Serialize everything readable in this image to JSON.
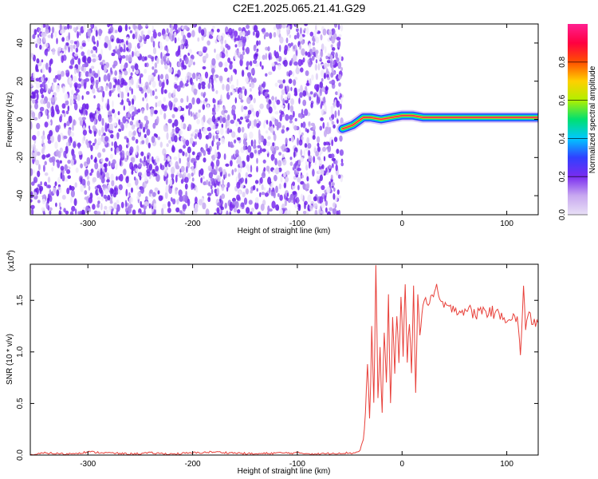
{
  "title": "C2E1.2025.065.21.41.G29",
  "colors": {
    "snr_line": "#e8403a",
    "scatter": "#7a2cf0",
    "axis": "#000000",
    "cbar": [
      "#e8e0f6",
      "#c8a8f0",
      "#7a2cf0",
      "#3040ff",
      "#00c8ff",
      "#00e070",
      "#b0f000",
      "#ffd000",
      "#ff5000",
      "#ff0040",
      "#ff2090"
    ]
  },
  "chart_data": [
    {
      "type": "heatmap",
      "xlabel": "Height of straight line (km)",
      "ylabel": "Frequency (Hz)",
      "xlim": [
        -355,
        130
      ],
      "ylim": [
        -50,
        50
      ],
      "xticks": [
        -300,
        -200,
        -100,
        0,
        100
      ],
      "yticks": [
        -40,
        -20,
        0,
        20,
        40
      ],
      "colorbar": {
        "label": "Normalized spectral amplitude",
        "range": [
          0,
          1
        ],
        "ticks": [
          0.0,
          0.2,
          0.4,
          0.6,
          0.8
        ]
      },
      "noise_region_x": [
        -355,
        -57
      ],
      "tone_track": {
        "x": [
          -57,
          -52,
          -47,
          -42,
          -37,
          -30,
          -20,
          -10,
          0,
          10,
          20,
          40,
          60,
          80,
          95,
          110,
          130
        ],
        "y": [
          -5,
          -4,
          -3,
          -1,
          1,
          1,
          0,
          1,
          2,
          2,
          1,
          1,
          1,
          1,
          1,
          1,
          1
        ]
      }
    },
    {
      "type": "line",
      "xlabel": "Height of straight line (km)",
      "ylabel": "SNR (10 * v/v)",
      "y_multiplier": "(x10",
      "y_multiplier_exp": "4",
      "y_multiplier_close": ")",
      "xlim": [
        -355,
        130
      ],
      "ylim": [
        0,
        1.85
      ],
      "xticks": [
        -300,
        -200,
        -100,
        0,
        100
      ],
      "yticks": [
        0.0,
        0.5,
        1.0,
        1.5
      ],
      "ytick_labels": [
        "0.0",
        "0.5",
        "1.0",
        "1.5"
      ],
      "series": [
        {
          "x": [
            -355,
            -340,
            -320,
            -300,
            -280,
            -260,
            -240,
            -220,
            -200,
            -180,
            -160,
            -140,
            -120,
            -100,
            -80,
            -60,
            -45,
            -40,
            -37,
            -35,
            -33,
            -31,
            -29,
            -27,
            -25,
            -23,
            -21,
            -19,
            -17,
            -15,
            -13,
            -11,
            -9,
            -7,
            -5,
            -3,
            -1,
            1,
            3,
            5,
            7,
            9,
            11,
            13,
            15,
            17,
            20,
            25,
            30,
            33,
            36,
            40,
            45,
            50,
            55,
            60,
            65,
            70,
            75,
            80,
            85,
            90,
            95,
            100,
            105,
            110,
            113,
            116,
            118,
            120,
            125,
            130
          ],
          "y": [
            0.0,
            0.02,
            0.01,
            0.03,
            0.02,
            0.01,
            0.02,
            0.01,
            0.02,
            0.03,
            0.02,
            0.01,
            0.02,
            0.02,
            0.01,
            0.02,
            0.02,
            0.05,
            0.15,
            0.4,
            0.9,
            0.3,
            1.2,
            0.5,
            1.8,
            0.6,
            1.0,
            0.4,
            1.2,
            0.7,
            1.5,
            0.5,
            1.3,
            0.8,
            1.4,
            0.9,
            1.5,
            1.0,
            1.6,
            0.9,
            1.3,
            0.8,
            1.7,
            0.6,
            1.5,
            1.2,
            1.45,
            1.5,
            1.55,
            1.6,
            1.5,
            1.45,
            1.4,
            1.45,
            1.38,
            1.42,
            1.4,
            1.35,
            1.42,
            1.38,
            1.4,
            1.35,
            1.38,
            1.32,
            1.35,
            1.3,
            1.0,
            1.6,
            1.25,
            1.35,
            1.3,
            1.28
          ]
        }
      ]
    }
  ]
}
